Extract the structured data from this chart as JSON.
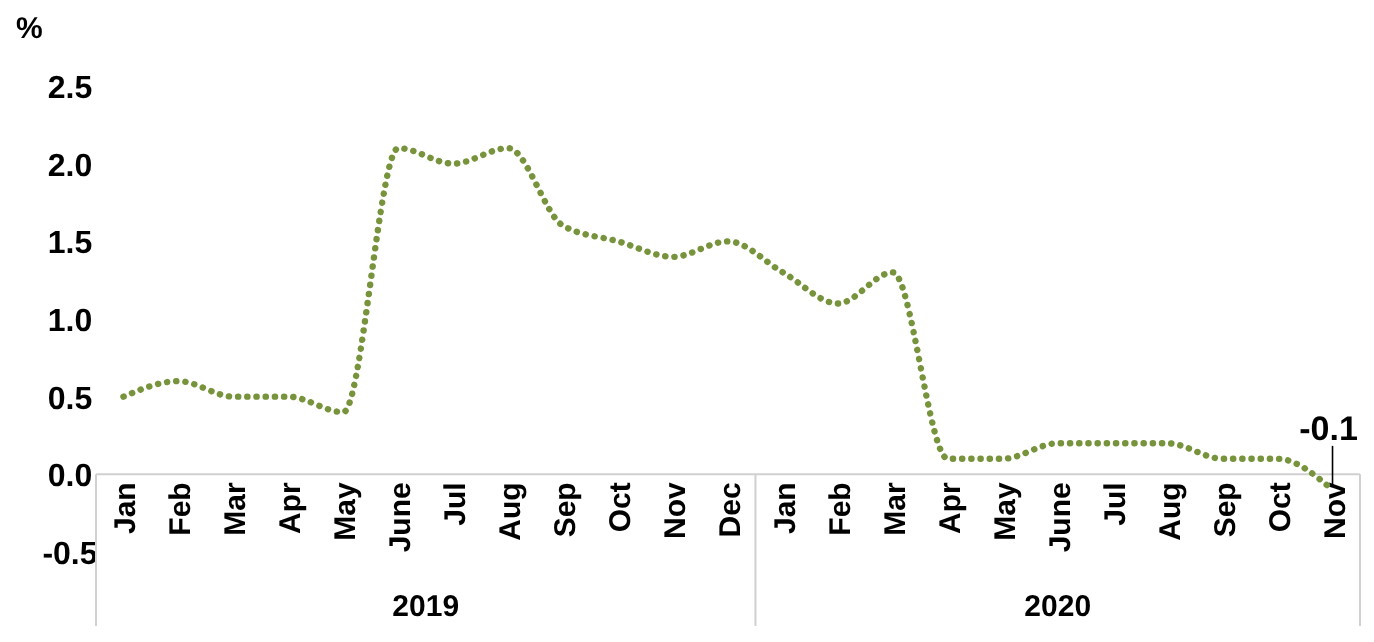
{
  "chart_data": {
    "type": "line",
    "ylabel": "%",
    "categories": [
      "Jan",
      "Feb",
      "Mar",
      "Apr",
      "May",
      "June",
      "Jul",
      "Aug",
      "Sep",
      "Oct",
      "Nov",
      "Dec",
      "Jan",
      "Feb",
      "Mar",
      "Apr",
      "May",
      "June",
      "Jul",
      "Aug",
      "Sep",
      "Oct",
      "Nov"
    ],
    "series": [
      {
        "color": "#77933c",
        "values": [
          0.5,
          0.6,
          0.5,
          0.5,
          0.4,
          2.1,
          2.0,
          2.1,
          1.6,
          1.5,
          1.4,
          1.5,
          1.3,
          1.1,
          1.3,
          0.1,
          0.1,
          0.2,
          0.2,
          0.2,
          0.1,
          0.1,
          -0.1
        ],
        "value_labels": [
          null,
          null,
          null,
          null,
          null,
          null,
          null,
          null,
          null,
          null,
          null,
          null,
          null,
          null,
          null,
          null,
          null,
          null,
          null,
          null,
          null,
          null,
          "-0.1"
        ]
      }
    ],
    "annotations": [
      "2019",
      "2020"
    ],
    "ylim": [
      -0.5,
      2.5
    ],
    "yticks": [
      {
        "value": -0.5,
        "label": "-0.5"
      },
      {
        "value": 0,
        "label": "0.0"
      },
      {
        "value": 0.5,
        "label": "0.5"
      },
      {
        "value": 1,
        "label": "1.0"
      },
      {
        "value": 1.5,
        "label": "1.5"
      },
      {
        "value": 2,
        "label": "2.0"
      },
      {
        "value": 2.5,
        "label": "2.5"
      }
    ],
    "grid": false,
    "marker": "none",
    "line_style": "dotted"
  }
}
